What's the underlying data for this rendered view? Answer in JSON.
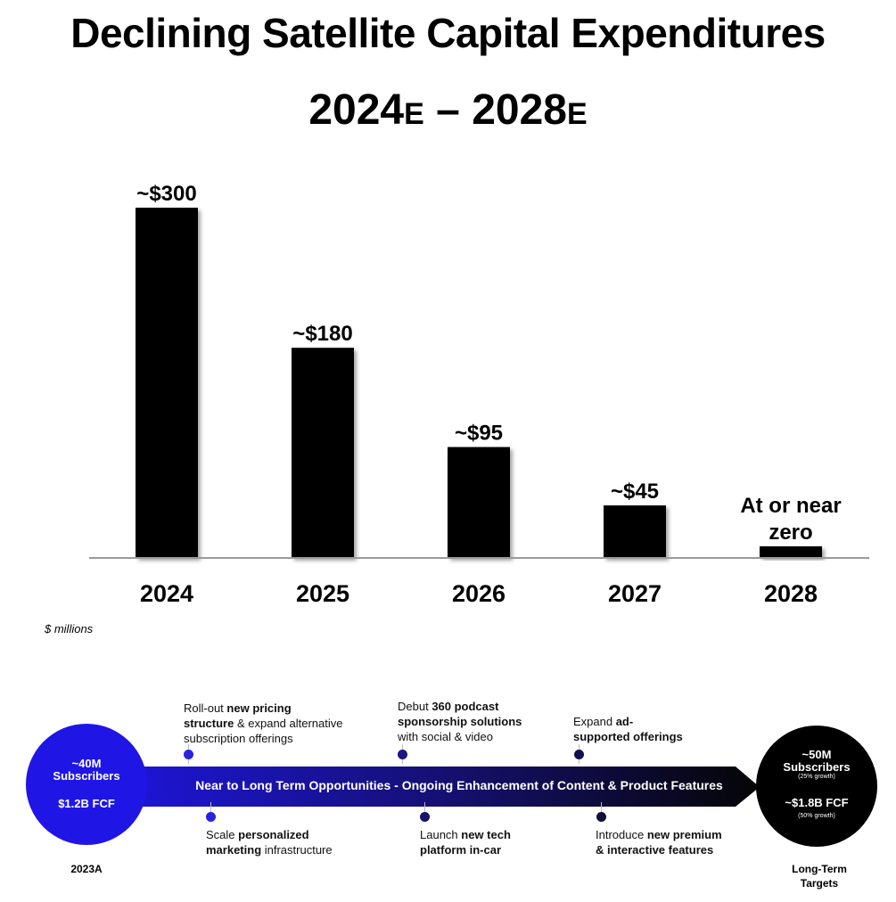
{
  "title": {
    "line1": "Declining Satellite Capital Expenditures",
    "range_start": "2024",
    "range_start_suffix": "E",
    "dash": " – ",
    "range_end": "2028",
    "range_end_suffix": "E"
  },
  "chart_data": {
    "type": "bar",
    "title": "Declining Satellite Capital Expenditures 2024E – 2028E",
    "categories": [
      "2024",
      "2025",
      "2026",
      "2027",
      "2028"
    ],
    "values": [
      300,
      180,
      95,
      45,
      10
    ],
    "data_labels": [
      "~$300",
      "~$180",
      "~$95",
      "~$45",
      "At or near zero"
    ],
    "xlabel": "",
    "ylabel": "$ millions",
    "ylim": [
      0,
      300
    ],
    "grid": false,
    "bar_color": "#000000"
  },
  "units_note": "$ millions",
  "roadmap": {
    "colors": {
      "start": "#1f16e6",
      "end": "#000000"
    },
    "start_circle": {
      "line1": "~40M",
      "line2": "Subscribers",
      "fcf": "$1.2B FCF",
      "caption": "2023A"
    },
    "end_circle": {
      "line1": "~50M",
      "line2": "Subscribers",
      "sub_growth": "(25% growth)",
      "fcf": "~$1.8B FCF",
      "fcf_growth": "(50% growth)",
      "caption_line1": "Long-Term",
      "caption_line2": "Targets"
    },
    "banner": "Near to Long Term Opportunities - Ongoing Enhancement of Content & Product Features",
    "top_items": [
      {
        "t1": "Roll-out ",
        "b1": "new pricing",
        "t2": "",
        "b2": "structure",
        "t3": " & expand alternative",
        "t4": "subscription offerings"
      },
      {
        "t1": "Debut ",
        "b1": "360 podcast",
        "t2": "",
        "b2": "sponsorship solutions",
        "t3": "",
        "t4": "with social & video"
      },
      {
        "t1": "Expand ",
        "b1": "ad-",
        "t2": "",
        "b2": "supported offerings",
        "t3": "",
        "t4": ""
      }
    ],
    "bottom_items": [
      {
        "t1": "Scale ",
        "b1": "personalized",
        "b2": "marketing",
        "t3": " infrastructure"
      },
      {
        "t1": "Launch ",
        "b1": "new tech",
        "b2": "platform in-car",
        "t3": ""
      },
      {
        "t1": "Introduce ",
        "b1": "new premium",
        "b2": "& interactive features",
        "t3": ""
      }
    ]
  }
}
